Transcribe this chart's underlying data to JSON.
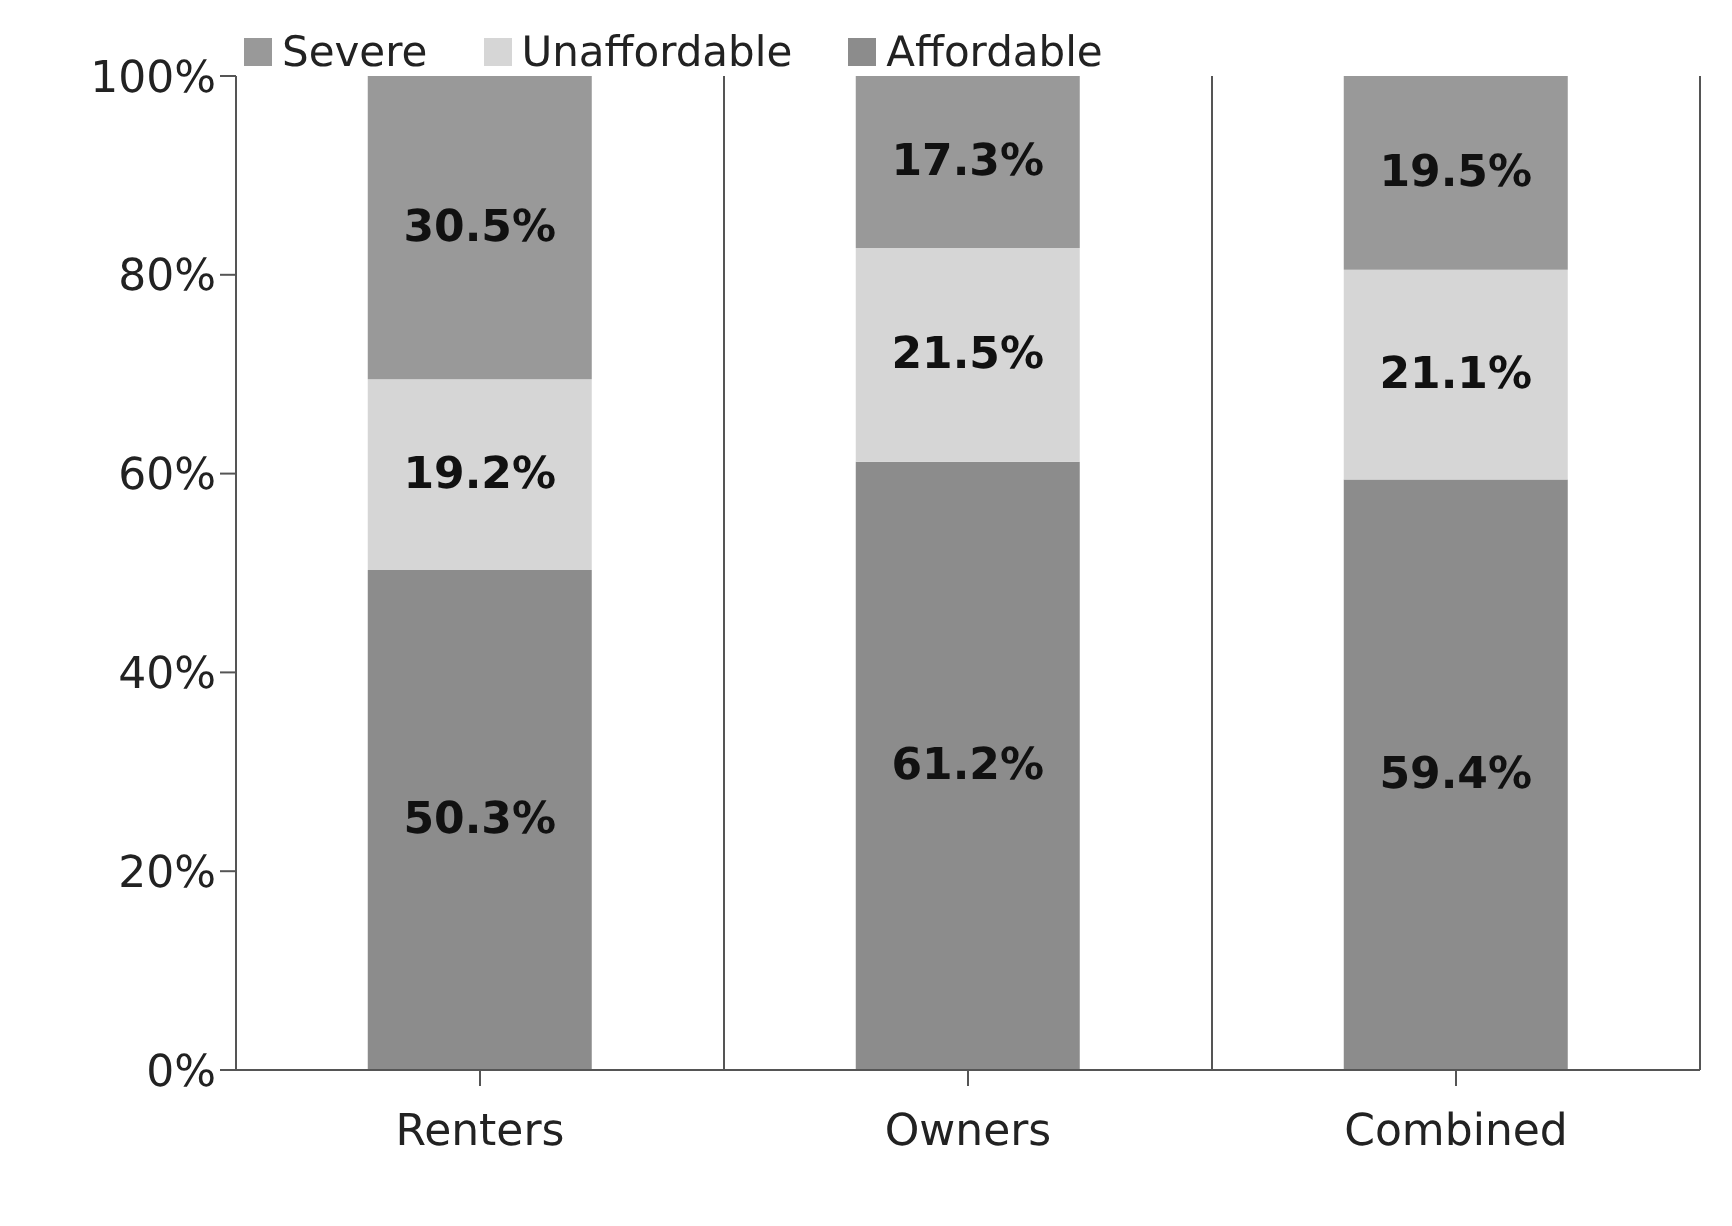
{
  "chart_data": {
    "type": "bar",
    "stacked": true,
    "categories": [
      "Renters",
      "Owners",
      "Combined"
    ],
    "series": [
      {
        "name": "Affordable",
        "color": "#8c8c8c",
        "values": [
          50.3,
          61.2,
          59.4
        ],
        "value_labels": [
          "50.3%",
          "61.2%",
          "59.4%"
        ]
      },
      {
        "name": "Unaffordable",
        "color": "#d6d6d6",
        "values": [
          19.2,
          21.5,
          21.1
        ],
        "value_labels": [
          "19.2%",
          "21.5%",
          "21.1%"
        ]
      },
      {
        "name": "Severe",
        "color": "#999999",
        "values": [
          30.5,
          17.3,
          19.5
        ],
        "value_labels": [
          "30.5%",
          "17.3%",
          "19.5%"
        ]
      }
    ],
    "ylim": [
      0,
      100
    ],
    "yticks": [
      {
        "value": 0,
        "label": "0%"
      },
      {
        "value": 20,
        "label": "20%"
      },
      {
        "value": 40,
        "label": "40%"
      },
      {
        "value": 60,
        "label": "60%"
      },
      {
        "value": 80,
        "label": "80%"
      },
      {
        "value": 100,
        "label": "100%"
      }
    ],
    "grid": "x",
    "legend": "top left"
  }
}
